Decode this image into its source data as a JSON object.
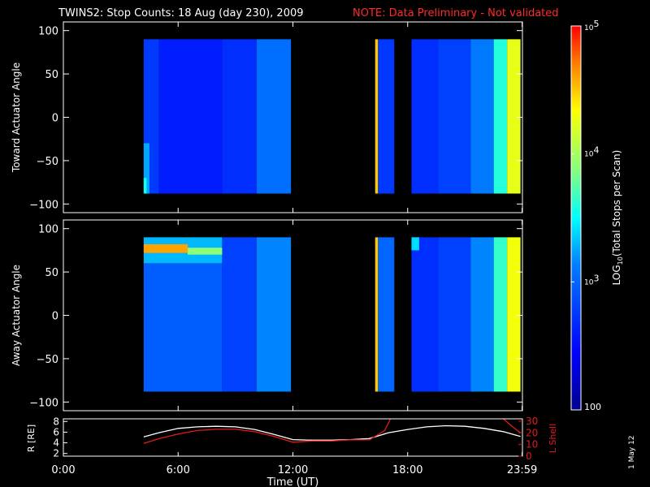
{
  "header": {
    "title": "TWINS2: Stop Counts: 18 Aug (day 230), 2009",
    "note": "NOTE: Data Preliminary - Not validated"
  },
  "footer": {
    "date_stamp": "1 May 12"
  },
  "colors": {
    "background": "#000000",
    "axes": "#ffffff",
    "note": "#ff2a2a",
    "r_line": "#ffffff",
    "lshell_line": "#e31a1c"
  },
  "chart_data": [
    {
      "type": "heatmap",
      "panel": "top",
      "title": "",
      "xlabel": "",
      "ylabel": "Toward Actuator Angle",
      "xlim": [
        0,
        24
      ],
      "ylim": [
        -110,
        110
      ],
      "y_ticks": [
        100,
        50,
        0,
        -50,
        -100
      ],
      "x_ticks": [
        "0:00",
        "6:00",
        "12:00",
        "18:00",
        "23:59"
      ],
      "y_extent": [
        -88,
        90
      ],
      "data_intervals": [
        [
          4.2,
          11.9
        ],
        [
          16.3,
          17.3
        ],
        [
          18.2,
          23.9
        ]
      ],
      "cells": [
        {
          "t": [
            4.2,
            5.0
          ],
          "y": [
            -88,
            90
          ],
          "log10_counts": 2.76
        },
        {
          "t": [
            4.2,
            4.5
          ],
          "y": [
            -88,
            -30
          ],
          "log10_counts": 3.25
        },
        {
          "t": [
            4.2,
            4.35
          ],
          "y": [
            -88,
            -70
          ],
          "log10_counts": 3.55
        },
        {
          "t": [
            5.0,
            8.3
          ],
          "y": [
            -88,
            90
          ],
          "log10_counts": 2.6
        },
        {
          "t": [
            8.3,
            10.1
          ],
          "y": [
            -88,
            90
          ],
          "log10_counts": 2.7
        },
        {
          "t": [
            10.1,
            11.9
          ],
          "y": [
            -88,
            90
          ],
          "log10_counts": 3.05
        },
        {
          "t": [
            16.3,
            16.45
          ],
          "y": [
            -88,
            90
          ],
          "log10_counts": 4.5
        },
        {
          "t": [
            16.45,
            17.3
          ],
          "y": [
            -88,
            90
          ],
          "log10_counts": 2.75
        },
        {
          "t": [
            18.2,
            19.6
          ],
          "y": [
            -88,
            90
          ],
          "log10_counts": 2.7
        },
        {
          "t": [
            19.6,
            21.3
          ],
          "y": [
            -88,
            90
          ],
          "log10_counts": 2.8
        },
        {
          "t": [
            21.3,
            22.5
          ],
          "y": [
            -88,
            90
          ],
          "log10_counts": 3.1
        },
        {
          "t": [
            22.5,
            23.2
          ],
          "y": [
            -88,
            90
          ],
          "log10_counts": 3.6
        },
        {
          "t": [
            23.2,
            23.9
          ],
          "y": [
            -88,
            90
          ],
          "log10_counts": 4.25
        }
      ]
    },
    {
      "type": "heatmap",
      "panel": "bottom",
      "title": "",
      "xlabel": "",
      "ylabel": "Away Actuator Angle",
      "xlim": [
        0,
        24
      ],
      "ylim": [
        -110,
        110
      ],
      "y_ticks": [
        100,
        50,
        0,
        -50,
        -100
      ],
      "x_ticks": [
        "0:00",
        "6:00",
        "12:00",
        "18:00",
        "23:59"
      ],
      "y_extent": [
        -88,
        90
      ],
      "data_intervals": [
        [
          4.2,
          11.9
        ],
        [
          16.3,
          17.3
        ],
        [
          18.2,
          23.9
        ]
      ],
      "cells": [
        {
          "t": [
            4.2,
            8.3
          ],
          "y": [
            -88,
            60
          ],
          "log10_counts": 2.95
        },
        {
          "t": [
            4.2,
            8.3
          ],
          "y": [
            60,
            90
          ],
          "log10_counts": 3.3
        },
        {
          "t": [
            4.2,
            6.5
          ],
          "y": [
            72,
            82
          ],
          "log10_counts": 4.6
        },
        {
          "t": [
            6.5,
            8.5
          ],
          "y": [
            70,
            78
          ],
          "log10_counts": 3.9
        },
        {
          "t": [
            8.3,
            10.1
          ],
          "y": [
            -88,
            90
          ],
          "log10_counts": 2.8
        },
        {
          "t": [
            10.1,
            11.9
          ],
          "y": [
            -88,
            90
          ],
          "log10_counts": 3.15
        },
        {
          "t": [
            16.3,
            16.45
          ],
          "y": [
            -88,
            90
          ],
          "log10_counts": 4.5
        },
        {
          "t": [
            16.45,
            17.3
          ],
          "y": [
            -88,
            90
          ],
          "log10_counts": 3.0
        },
        {
          "t": [
            18.2,
            19.6
          ],
          "y": [
            -88,
            90
          ],
          "log10_counts": 2.7
        },
        {
          "t": [
            18.2,
            18.6
          ],
          "y": [
            75,
            90
          ],
          "log10_counts": 3.4
        },
        {
          "t": [
            19.6,
            21.3
          ],
          "y": [
            -88,
            90
          ],
          "log10_counts": 2.8
        },
        {
          "t": [
            21.3,
            22.5
          ],
          "y": [
            -88,
            90
          ],
          "log10_counts": 3.15
        },
        {
          "t": [
            22.5,
            23.2
          ],
          "y": [
            -88,
            90
          ],
          "log10_counts": 3.65
        },
        {
          "t": [
            23.2,
            23.9
          ],
          "y": [
            -88,
            90
          ],
          "log10_counts": 4.3
        }
      ]
    },
    {
      "type": "line",
      "panel": "orbit",
      "title": "",
      "xlabel": "Time (UT)",
      "ylabel": "R [RE]",
      "y2label": "L Shell",
      "x_ticks": [
        "0:00",
        "6:00",
        "12:00",
        "18:00",
        "23:59"
      ],
      "xlim": [
        0,
        24
      ],
      "ylim": [
        1.5,
        8.5
      ],
      "y_ticks": [
        2,
        4,
        6,
        8
      ],
      "y2lim": [
        0,
        32
      ],
      "y2_ticks": [
        0,
        10,
        20,
        30
      ],
      "series": [
        {
          "axis": "left",
          "x": [
            4.2,
            5,
            6,
            7,
            8,
            9,
            10,
            11,
            12,
            13,
            14,
            15,
            16,
            17,
            18,
            19,
            20,
            21,
            22,
            23,
            23.9
          ],
          "y": [
            5.1,
            5.9,
            6.7,
            7.0,
            7.1,
            7.0,
            6.5,
            5.6,
            4.6,
            4.5,
            4.5,
            4.6,
            4.8,
            5.9,
            6.5,
            7.0,
            7.2,
            7.1,
            6.7,
            6.1,
            5.2
          ]
        },
        {
          "axis": "right",
          "x": [
            4.2,
            5,
            6,
            7,
            8,
            9,
            10,
            11,
            12,
            13,
            14,
            15,
            16,
            16.8,
            17.1
          ],
          "y": [
            11,
            15,
            19,
            22,
            23,
            23,
            21,
            17,
            12,
            13,
            13,
            14,
            14,
            22,
            32
          ]
        },
        {
          "axis": "right",
          "x": [
            23.0,
            23.5,
            23.9
          ],
          "y": [
            32,
            25,
            20
          ]
        }
      ]
    }
  ],
  "colorbar": {
    "label": "LOG10(Total Stops per Scan)",
    "label_main": "LOG",
    "label_sub": "10",
    "label_rest": "(Total Stops per Scan)",
    "min_log": 2,
    "max_log": 5,
    "tick_bottom": "100",
    "tick_mid_base": "10",
    "ticks": [
      {
        "log": 3,
        "exp": "3"
      },
      {
        "log": 4,
        "exp": "4"
      },
      {
        "log": 5,
        "exp": "5"
      }
    ]
  }
}
